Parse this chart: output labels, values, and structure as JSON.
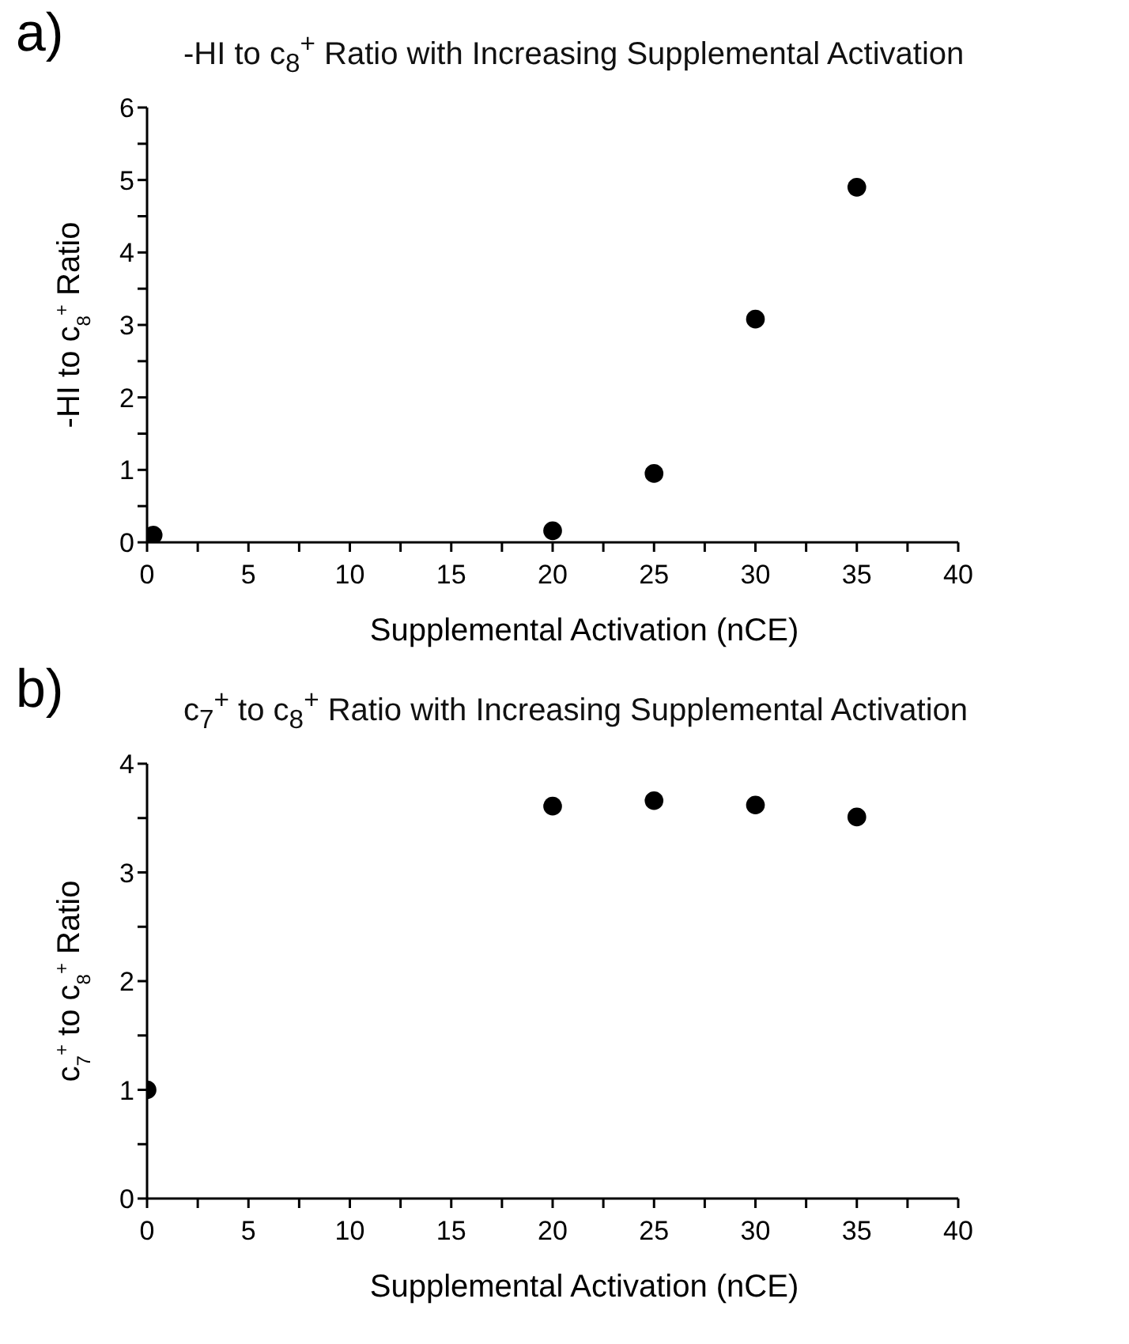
{
  "chart_data": [
    {
      "type": "scatter",
      "title": "-HI to c$_{8}$$^{+}$ Ratio with Increasing Supplemental Activation",
      "xlabel": "Supplemental Activation (nCE)",
      "ylabel": "-HI to c$_{8}$$^{+}$ Ratio",
      "annotations": [
        "a)"
      ],
      "x": [
        0.3,
        20,
        25,
        30,
        35
      ],
      "series": [
        {
          "color": "#000000",
          "values": [
            0.1,
            0.16,
            0.95,
            3.08,
            4.9
          ]
        }
      ],
      "marker": "circle",
      "xlim": [
        0,
        40
      ],
      "xticks": [
        0,
        {
          "value": 2.5,
          "label": null
        },
        5,
        {
          "value": 7.5,
          "label": null
        },
        10,
        {
          "value": 12.5,
          "label": null
        },
        15,
        {
          "value": 17.5,
          "label": null
        },
        20,
        {
          "value": 22.5,
          "label": null
        },
        25,
        {
          "value": 27.5,
          "label": null
        },
        30,
        {
          "value": 32.5,
          "label": null
        },
        35,
        {
          "value": 37.5,
          "label": null
        },
        40
      ],
      "ylim": [
        0,
        6
      ],
      "yticks": [
        0,
        {
          "value": 0.5,
          "label": null
        },
        1,
        {
          "value": 1.5,
          "label": null
        },
        2,
        {
          "value": 2.5,
          "label": null
        },
        3,
        {
          "value": 3.5,
          "label": null
        },
        4,
        {
          "value": 4.5,
          "label": null
        },
        5,
        {
          "value": 5.5,
          "label": null
        },
        6
      ]
    },
    {
      "type": "scatter",
      "title": "c$_{7}$$^{+}$ to c$_{8}$$^{+}$ Ratio with Increasing Supplemental Activation",
      "xlabel": "Supplemental Activation (nCE)",
      "ylabel": "c$_{7}$$^{+}$ to c$_{8}$$^{+}$ Ratio",
      "annotations": [
        "b)"
      ],
      "x": [
        0,
        20,
        25,
        30,
        35
      ],
      "series": [
        {
          "color": "#000000",
          "values": [
            1.0,
            3.61,
            3.66,
            3.62,
            3.51
          ]
        }
      ],
      "marker": "circle",
      "xlim": [
        0,
        40
      ],
      "xticks": [
        0,
        {
          "value": 2.5,
          "label": null
        },
        5,
        {
          "value": 7.5,
          "label": null
        },
        10,
        {
          "value": 12.5,
          "label": null
        },
        15,
        {
          "value": 17.5,
          "label": null
        },
        20,
        {
          "value": 22.5,
          "label": null
        },
        25,
        {
          "value": 27.5,
          "label": null
        },
        30,
        {
          "value": 32.5,
          "label": null
        },
        35,
        {
          "value": 37.5,
          "label": null
        },
        40
      ],
      "ylim": [
        0,
        4
      ],
      "yticks": [
        0,
        {
          "value": 0.5,
          "label": null
        },
        1,
        {
          "value": 1.5,
          "label": null
        },
        2,
        {
          "value": 2.5,
          "label": null
        },
        3,
        {
          "value": 3.5,
          "label": null
        },
        4
      ]
    }
  ]
}
